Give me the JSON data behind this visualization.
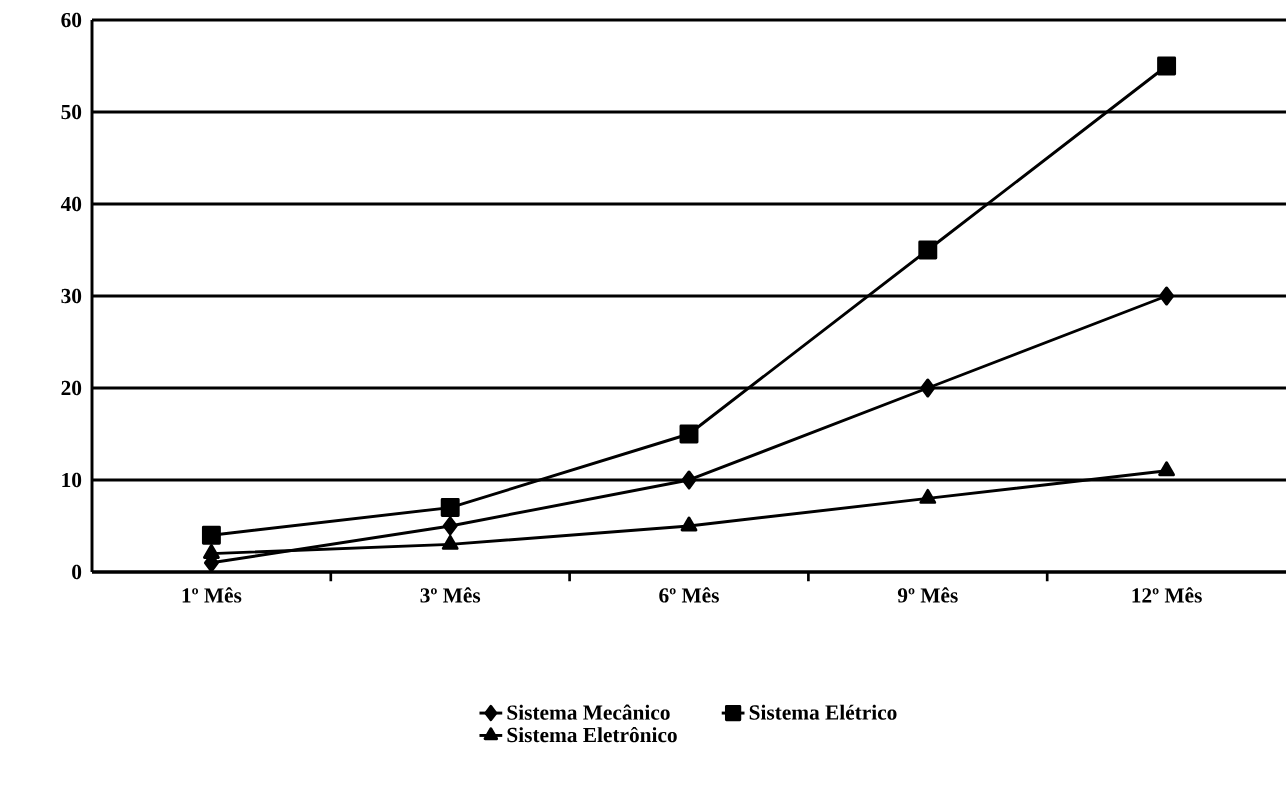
{
  "chart_data": {
    "type": "line",
    "categories": [
      "1º Mês",
      "3º Mês",
      "6º Mês",
      "9º Mês",
      "12º Mês"
    ],
    "series": [
      {
        "name": "Sistema Mecânico",
        "color": "#000000",
        "marker": "diamond",
        "values": [
          1,
          5,
          10,
          20,
          30
        ]
      },
      {
        "name": "Sistema Elétrico",
        "color": "#000000",
        "marker": "square",
        "values": [
          4,
          7,
          15,
          35,
          55
        ]
      },
      {
        "name": "Sistema Eletrônico",
        "color": "#000000",
        "marker": "triangle",
        "values": [
          2,
          3,
          5,
          8,
          11
        ]
      }
    ],
    "ylim": [
      0,
      60
    ],
    "yticks": [
      0,
      10,
      20,
      30,
      40,
      50,
      60
    ],
    "grid": "y",
    "legend": "bottom",
    "line_style": "solid"
  }
}
